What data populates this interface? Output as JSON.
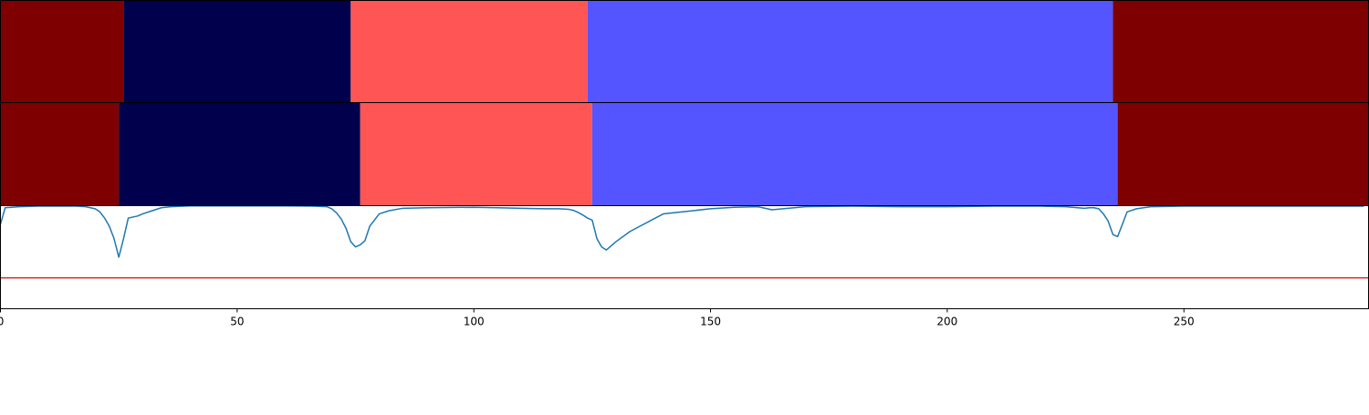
{
  "chart_data": {
    "type": "line",
    "panels": [
      {
        "kind": "segmentation",
        "segments": [
          {
            "start": 0,
            "end": 26,
            "color": "#7f0000"
          },
          {
            "start": 26,
            "end": 74,
            "color": "#00004c"
          },
          {
            "start": 74,
            "end": 124,
            "color": "#ff5555"
          },
          {
            "start": 124,
            "end": 235,
            "color": "#5555ff"
          },
          {
            "start": 235,
            "end": 289,
            "color": "#7f0000"
          }
        ]
      },
      {
        "kind": "segmentation",
        "segments": [
          {
            "start": 0,
            "end": 25,
            "color": "#7f0000"
          },
          {
            "start": 25,
            "end": 76,
            "color": "#00004c"
          },
          {
            "start": 76,
            "end": 125,
            "color": "#ff5555"
          },
          {
            "start": 125,
            "end": 236,
            "color": "#5555ff"
          },
          {
            "start": 236,
            "end": 289,
            "color": "#7f0000"
          }
        ]
      },
      {
        "kind": "line",
        "ylim": [
          0,
          1
        ],
        "threshold": 0.3,
        "threshold_color": "#d62728",
        "series": [
          {
            "color": "#1f77b4",
            "x": [
              0,
              1,
              4,
              8,
              12,
              16,
              18,
              20,
              21,
              22,
              23,
              24,
              25,
              26,
              27,
              29,
              30,
              32,
              34,
              36,
              40,
              50,
              60,
              66,
              69,
              70,
              71,
              72,
              73,
              74,
              75,
              76,
              77,
              78,
              80,
              82,
              85,
              90,
              100,
              105,
              110,
              115,
              118,
              120,
              121,
              122,
              123,
              124,
              125,
              126,
              127,
              128,
              130,
              133,
              140,
              150,
              155,
              160,
              161,
              163,
              170,
              180,
              190,
              200,
              210,
              220,
              225,
              229,
              230,
              231,
              232,
              233,
              234,
              235,
              236,
              237,
              238,
              240,
              243,
              250,
              260,
              270,
              280,
              288
            ],
            "y": [
              0.82,
              0.98,
              0.99,
              0.995,
              0.995,
              0.995,
              0.99,
              0.97,
              0.94,
              0.88,
              0.8,
              0.68,
              0.5,
              0.68,
              0.88,
              0.9,
              0.92,
              0.95,
              0.98,
              0.99,
              0.998,
              0.998,
              0.998,
              0.995,
              0.99,
              0.97,
              0.93,
              0.87,
              0.78,
              0.65,
              0.6,
              0.62,
              0.66,
              0.8,
              0.92,
              0.95,
              0.975,
              0.98,
              0.985,
              0.98,
              0.975,
              0.97,
              0.97,
              0.965,
              0.955,
              0.935,
              0.91,
              0.88,
              0.86,
              0.68,
              0.6,
              0.57,
              0.65,
              0.75,
              0.92,
              0.97,
              0.985,
              0.99,
              0.98,
              0.96,
              0.99,
              0.995,
              0.99,
              0.99,
              0.995,
              0.995,
              0.99,
              0.975,
              0.98,
              0.98,
              0.97,
              0.92,
              0.85,
              0.72,
              0.7,
              0.82,
              0.94,
              0.97,
              0.99,
              0.995,
              0.995,
              0.995,
              0.995,
              0.995
            ]
          }
        ]
      }
    ],
    "x_axis": {
      "xlim": [
        0,
        289
      ],
      "ticks": [
        0,
        50,
        100,
        150,
        200,
        250
      ],
      "tick_labels": [
        "0",
        "50",
        "100",
        "150",
        "200",
        "250"
      ]
    },
    "grid": false,
    "title": "",
    "xlabel": "",
    "ylabel": ""
  }
}
